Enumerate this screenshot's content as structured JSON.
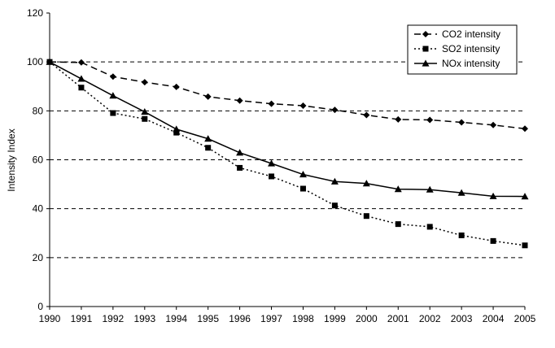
{
  "chart_data": {
    "type": "line",
    "title": "",
    "xlabel": "",
    "ylabel": "Intensity Index",
    "x": [
      1990,
      1991,
      1992,
      1993,
      1994,
      1995,
      1996,
      1997,
      1998,
      1999,
      2000,
      2001,
      2002,
      2003,
      2004,
      2005
    ],
    "ylim": [
      0,
      120
    ],
    "yticks": [
      0,
      20,
      40,
      60,
      80,
      100,
      120
    ],
    "grid": "horizontal-dashed",
    "legend_position": "top-right",
    "series": [
      {
        "name": "CO2 intensity",
        "marker": "diamond",
        "line_style": "dashed",
        "color": "#000000",
        "values": [
          100,
          99.8,
          94,
          91.7,
          89.8,
          85.8,
          84.2,
          82.9,
          82.1,
          80.4,
          78.3,
          76.5,
          76.3,
          75.3,
          74.2,
          72.7
        ]
      },
      {
        "name": "SO2 intensity",
        "marker": "square",
        "line_style": "dotted",
        "color": "#000000",
        "values": [
          100,
          89.5,
          79.1,
          76.7,
          71.1,
          64.9,
          56.7,
          53.2,
          48.2,
          41.3,
          37,
          33.7,
          32.6,
          29.1,
          26.8,
          25
        ]
      },
      {
        "name": "NOx intensity",
        "marker": "triangle",
        "line_style": "solid",
        "color": "#000000",
        "values": [
          100,
          93.1,
          86.2,
          79.6,
          72.5,
          68.6,
          62.9,
          58.5,
          54,
          51.1,
          50.3,
          48,
          47.8,
          46.5,
          45.1,
          45
        ]
      }
    ]
  }
}
